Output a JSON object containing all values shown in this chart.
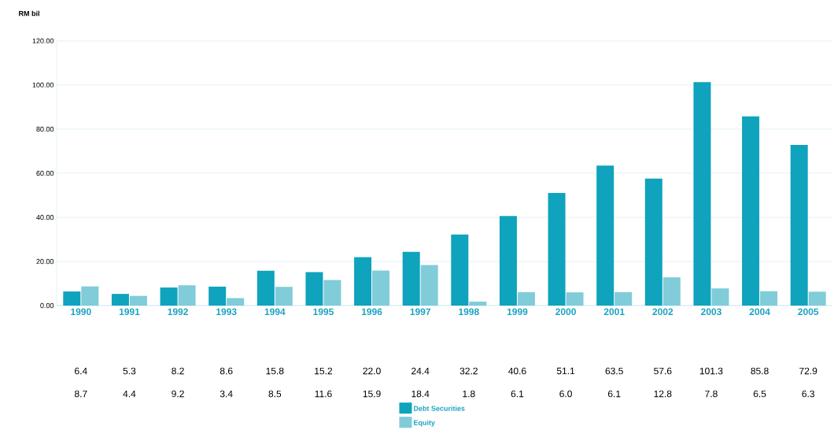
{
  "chart_data": {
    "type": "bar",
    "ylabel": "RM bil",
    "categories": [
      "1990",
      "1991",
      "1992",
      "1993",
      "1994",
      "1995",
      "1996",
      "1997",
      "1998",
      "1999",
      "2000",
      "2001",
      "2002",
      "2003",
      "2004",
      "2005"
    ],
    "series": [
      {
        "name": "Debt Securities",
        "color": "#0fa3bd",
        "values": [
          6.4,
          5.3,
          8.2,
          8.6,
          15.8,
          15.2,
          22.0,
          24.4,
          32.2,
          40.6,
          51.1,
          63.5,
          57.6,
          101.3,
          85.8,
          72.9
        ],
        "value_labels": [
          "6.4",
          "5.3",
          "8.2",
          "8.6",
          "15.8",
          "15.2",
          "22.0",
          "24.4",
          "32.2",
          "40.6",
          "51.1",
          "63.5",
          "57.6",
          "101.3",
          "85.8",
          "72.9"
        ]
      },
      {
        "name": "Equity",
        "color": "#80ccd9",
        "values": [
          8.7,
          4.4,
          9.2,
          3.4,
          8.5,
          11.6,
          15.9,
          18.4,
          1.8,
          6.1,
          6.0,
          6.1,
          12.8,
          7.8,
          6.5,
          6.3
        ],
        "value_labels": [
          "8.7",
          "4.4",
          "9.2",
          "3.4",
          "8.5",
          "11.6",
          "15.9",
          "18.4",
          "1.8",
          "6.1",
          "6.0",
          "6.1",
          "12.8",
          "7.8",
          "6.5",
          "6.3"
        ]
      }
    ],
    "ylim": [
      0,
      120
    ],
    "yticks": [
      {
        "value": 0,
        "label": "0.00"
      },
      {
        "value": 20,
        "label": "20.00"
      },
      {
        "value": 40,
        "label": "40.00"
      },
      {
        "value": 60,
        "label": "60.00"
      },
      {
        "value": 80,
        "label": "80.00"
      },
      {
        "value": 100,
        "label": "100.00"
      },
      {
        "value": 120,
        "label": "120.00"
      }
    ],
    "grid": "y",
    "legend": "bottom"
  }
}
